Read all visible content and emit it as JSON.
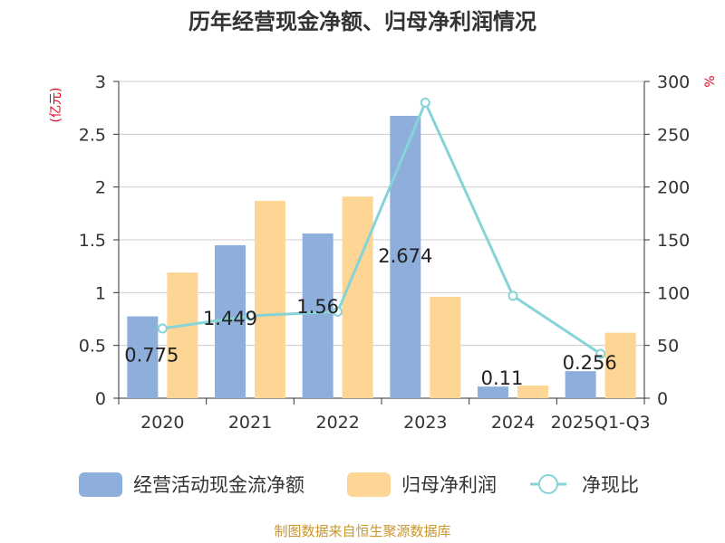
{
  "chart_data": {
    "type": "bar",
    "title": "历年经营现金净额、归母净利润情况",
    "categories": [
      "2020",
      "2021",
      "2022",
      "2023",
      "2024",
      "2025Q1-Q3"
    ],
    "series": [
      {
        "name": "经营活动现金流净额",
        "kind": "bar",
        "axis": "left",
        "color": "#8eaedb",
        "values": [
          0.775,
          1.449,
          1.56,
          2.674,
          0.11,
          0.256
        ],
        "data_labels": [
          "0.775",
          "1.449",
          "1.56",
          "2.674",
          "0.11",
          "0.256"
        ]
      },
      {
        "name": "归母净利润",
        "kind": "bar",
        "axis": "left",
        "color": "#fdd594",
        "values": [
          1.19,
          1.87,
          1.91,
          0.96,
          0.12,
          0.62
        ]
      },
      {
        "name": "净现比",
        "kind": "line",
        "axis": "right",
        "color": "#86d3d8",
        "values": [
          66,
          78,
          82,
          280,
          97,
          42
        ]
      }
    ],
    "left_axis": {
      "label": "(亿元)",
      "ylim": [
        0,
        3
      ],
      "ticks": [
        "0",
        "0.5",
        "1",
        "1.5",
        "2",
        "2.5",
        "3"
      ]
    },
    "right_axis": {
      "label": "%",
      "ylim": [
        0,
        300
      ],
      "ticks": [
        "0",
        "50",
        "100",
        "150",
        "200",
        "250",
        "300"
      ]
    },
    "legend_position": "bottom",
    "grid": true
  },
  "source": "制图数据来自恒生聚源数据库"
}
